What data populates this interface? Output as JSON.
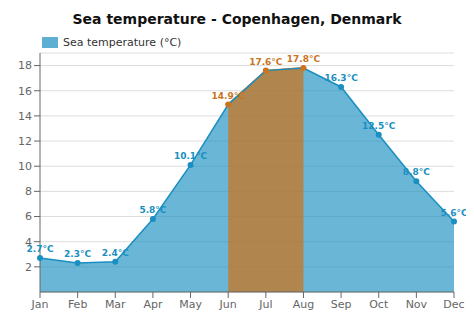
{
  "chart_data": {
    "type": "area",
    "title": "Sea temperature - Copenhagen, Denmark",
    "categories": [
      "Jan",
      "Feb",
      "Mar",
      "Apr",
      "May",
      "Jun",
      "Jul",
      "Aug",
      "Sep",
      "Oct",
      "Nov",
      "Dec"
    ],
    "series": [
      {
        "name": "Sea temperature (°C)",
        "color": "#1A8FC1",
        "colors": [
          "#1A8FC1",
          "#1A8FC1",
          "#1A8FC1",
          "#1A8FC1",
          "#1A8FC1",
          "#C97420",
          "#C97420",
          "#C97420",
          "#1A8FC1",
          "#1A8FC1",
          "#1A8FC1",
          "#1A8FC1"
        ],
        "values": [
          2.7,
          2.3,
          2.4,
          5.8,
          10.1,
          14.9,
          17.6,
          17.8,
          16.3,
          12.5,
          8.8,
          5.6
        ],
        "value_labels": [
          "2.7°C",
          "2.3°C",
          "2.4°C",
          "5.8°C",
          "10.1°C",
          "14.9°C",
          "17.6°C",
          "17.8°C",
          "16.3°C",
          "12.5°C",
          "8.8°C",
          "5.6°C"
        ]
      }
    ],
    "ylim": [
      0,
      19
    ],
    "yticks": [
      2,
      4,
      6,
      8,
      10,
      12,
      14,
      16,
      18
    ],
    "grid": true,
    "legend": "upper left",
    "data_labels": true
  }
}
